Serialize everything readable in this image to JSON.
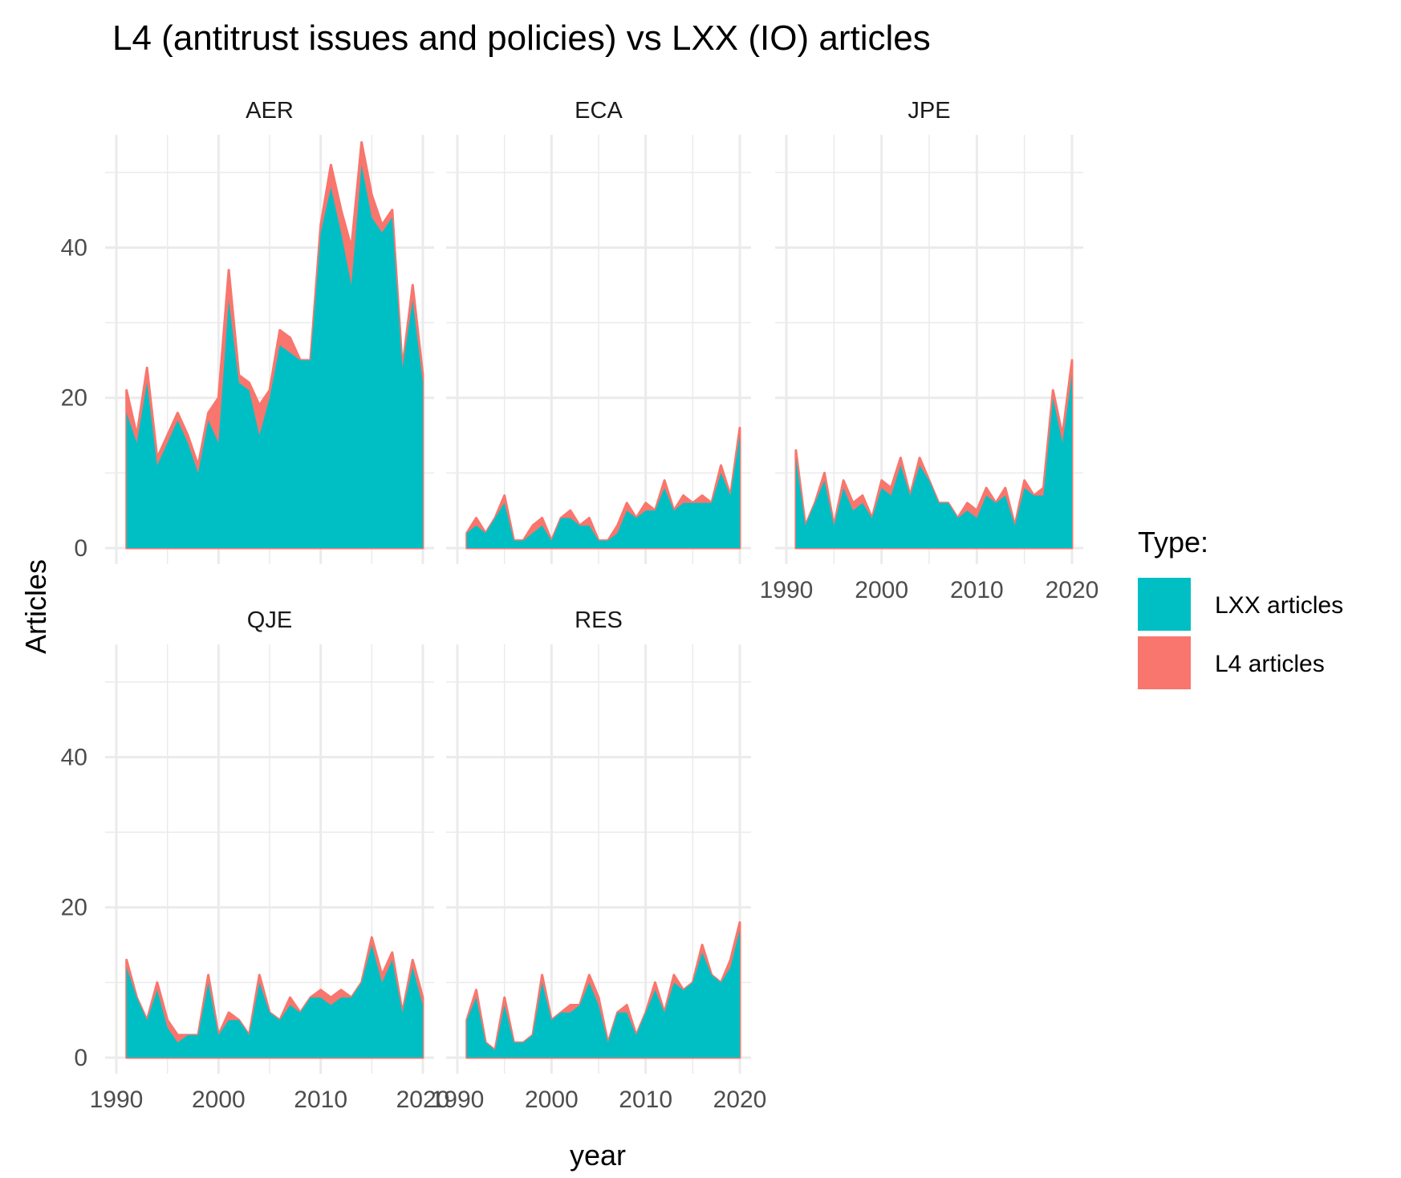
{
  "chart_data": {
    "type": "area",
    "title": "L4 (antitrust issues and policies) vs LXX (IO) articles",
    "xlabel": "year",
    "ylabel": "Articles",
    "xlim": [
      1990,
      2020
    ],
    "ylim": [
      0,
      55
    ],
    "x_ticks": [
      1990,
      2000,
      2010,
      2020
    ],
    "y_ticks": [
      0,
      20,
      40
    ],
    "grid": true,
    "legend": {
      "title": "Type:",
      "position": "right",
      "entries": [
        {
          "name": "LXX articles",
          "color": "#00BFC4"
        },
        {
          "name": "L4 articles",
          "color": "#F8766D"
        }
      ]
    },
    "x": [
      1991,
      1992,
      1993,
      1994,
      1995,
      1996,
      1997,
      1998,
      1999,
      2000,
      2001,
      2002,
      2003,
      2004,
      2005,
      2006,
      2007,
      2008,
      2009,
      2010,
      2011,
      2012,
      2013,
      2014,
      2015,
      2016,
      2017,
      2018,
      2019,
      2020
    ],
    "panels": [
      {
        "name": "AER",
        "lxx": [
          18,
          14,
          22,
          11,
          14,
          17,
          14,
          10,
          17,
          14,
          33,
          22,
          21,
          15,
          20,
          27,
          26,
          25,
          25,
          42,
          48,
          42,
          35,
          51,
          44,
          42,
          44,
          24,
          33,
          22
        ],
        "total": [
          21,
          15,
          24,
          12,
          15,
          18,
          15,
          11,
          18,
          20,
          37,
          23,
          22,
          19,
          21,
          29,
          28,
          25,
          25,
          43,
          51,
          45,
          40,
          54,
          47,
          43,
          45,
          24,
          35,
          23
        ]
      },
      {
        "name": "ECA",
        "lxx": [
          2,
          3,
          2,
          4,
          6,
          1,
          1,
          2,
          3,
          1,
          4,
          4,
          3,
          3,
          1,
          1,
          2,
          5,
          4,
          5,
          5,
          8,
          5,
          6,
          6,
          6,
          6,
          10,
          7,
          15
        ],
        "total": [
          2,
          4,
          2,
          4,
          7,
          1,
          1,
          3,
          4,
          1,
          4,
          5,
          3,
          4,
          1,
          1,
          3,
          6,
          4,
          6,
          5,
          9,
          5,
          7,
          6,
          7,
          6,
          11,
          7,
          16
        ]
      },
      {
        "name": "JPE",
        "lxx": [
          12,
          3,
          6,
          9,
          3,
          8,
          5,
          6,
          4,
          8,
          7,
          11,
          7,
          11,
          9,
          6,
          6,
          4,
          5,
          4,
          7,
          6,
          7,
          3,
          8,
          7,
          7,
          20,
          14,
          23
        ],
        "total": [
          13,
          3,
          6,
          10,
          3,
          9,
          6,
          7,
          4,
          9,
          8,
          12,
          7,
          12,
          9,
          6,
          6,
          4,
          6,
          5,
          8,
          6,
          8,
          3,
          9,
          7,
          8,
          21,
          15,
          25
        ]
      },
      {
        "name": "QJE",
        "lxx": [
          12,
          8,
          5,
          9,
          4,
          2,
          3,
          3,
          10,
          3,
          5,
          5,
          3,
          10,
          6,
          5,
          7,
          6,
          8,
          8,
          7,
          8,
          8,
          10,
          15,
          10,
          13,
          6,
          12,
          7
        ],
        "total": [
          13,
          8,
          5,
          10,
          5,
          3,
          3,
          3,
          11,
          3,
          6,
          5,
          3,
          11,
          6,
          5,
          8,
          6,
          8,
          9,
          8,
          9,
          8,
          10,
          16,
          11,
          14,
          6,
          13,
          8
        ]
      },
      {
        "name": "RES",
        "lxx": [
          5,
          8,
          2,
          1,
          7,
          2,
          2,
          3,
          10,
          5,
          6,
          6,
          7,
          10,
          7,
          2,
          6,
          6,
          3,
          6,
          9,
          6,
          10,
          9,
          10,
          14,
          11,
          10,
          12,
          17
        ],
        "total": [
          5,
          9,
          2,
          1,
          8,
          2,
          2,
          3,
          11,
          5,
          6,
          7,
          7,
          11,
          8,
          2,
          6,
          7,
          3,
          6,
          10,
          6,
          11,
          9,
          10,
          15,
          11,
          10,
          13,
          18
        ]
      }
    ]
  }
}
